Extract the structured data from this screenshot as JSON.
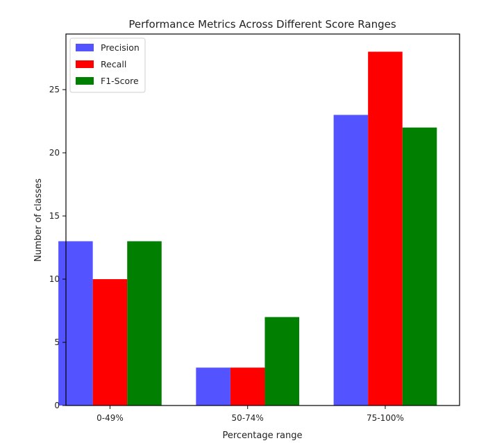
{
  "chart_data": {
    "type": "bar",
    "title": "Performance Metrics Across Different Score Ranges",
    "xlabel": "Percentage range",
    "ylabel": "Number of classes",
    "categories": [
      "0-49%",
      "50-74%",
      "75-100%"
    ],
    "series": [
      {
        "name": "Precision",
        "color": "#5353ff",
        "values": [
          13,
          3,
          23
        ]
      },
      {
        "name": "Recall",
        "color": "#ff0000",
        "values": [
          10,
          3,
          28
        ]
      },
      {
        "name": "F1-Score",
        "color": "#007f00",
        "values": [
          13,
          7,
          22
        ]
      }
    ],
    "ylim": [
      0,
      29.4
    ],
    "yticks": [
      0,
      5,
      10,
      15,
      20,
      25
    ],
    "grid": false,
    "legend_position": "top-left"
  }
}
